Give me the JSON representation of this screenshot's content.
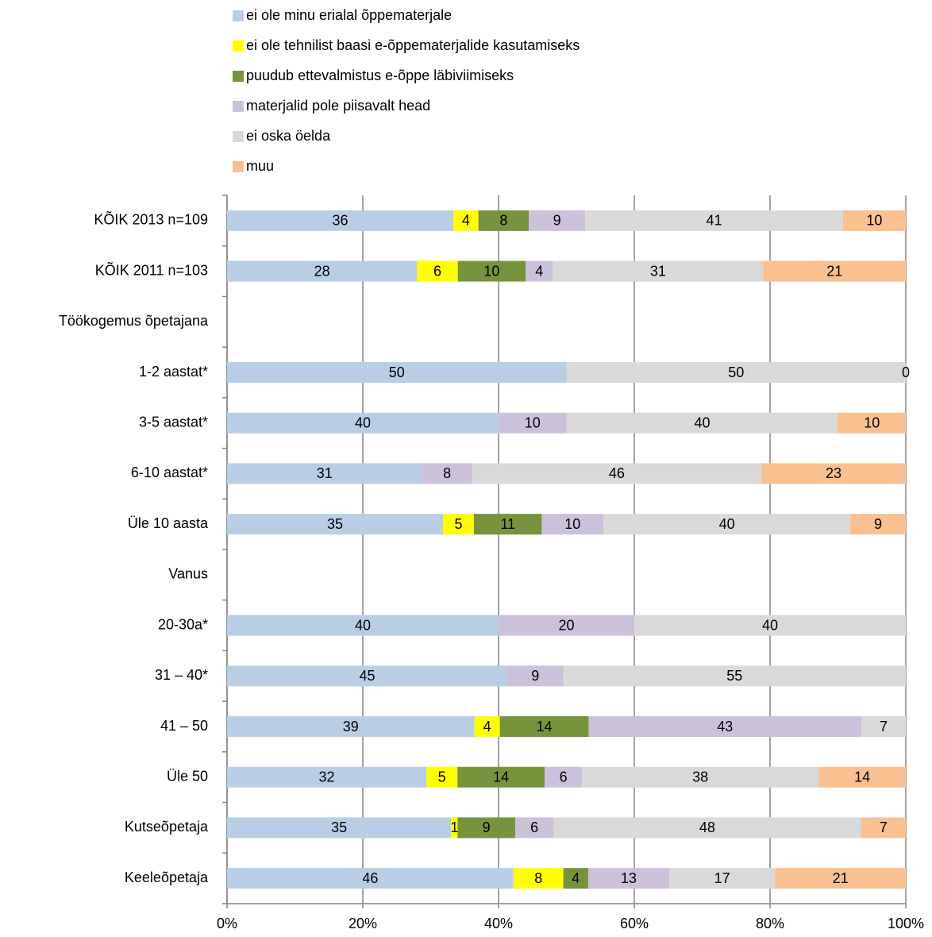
{
  "chart_data": {
    "type": "bar",
    "orientation": "horizontal",
    "stacked": "percent",
    "categories": [
      "KÕIK 2013 n=109",
      "KÕIK 2011 n=103",
      "Töökogemus õpetajana",
      "1-2 aastat*",
      "3-5 aastat*",
      "6-10 aastat*",
      "Üle 10 aasta",
      "Vanus",
      "20-30a*",
      "31 – 40*",
      "41 – 50",
      "Üle 50",
      "Kutseõpetaja",
      "Keeleõpetaja"
    ],
    "series": [
      {
        "name": "ei ole minu erialal õppematerjale",
        "color": "#b9cde5",
        "values": [
          36,
          28,
          null,
          50,
          40,
          31,
          35,
          null,
          40,
          45,
          39,
          32,
          35,
          46
        ]
      },
      {
        "name": "ei ole tehnilist baasi e-õppematerjalide kasutamiseks",
        "color": "#ffff00",
        "values": [
          4,
          6,
          null,
          null,
          null,
          null,
          5,
          null,
          null,
          null,
          4,
          5,
          1,
          8
        ]
      },
      {
        "name": "puudub ettevalmistus e-õppe läbiviimiseks",
        "color": "#77933c",
        "values": [
          8,
          10,
          null,
          null,
          null,
          null,
          11,
          null,
          null,
          null,
          14,
          14,
          9,
          4
        ]
      },
      {
        "name": "materjalid pole piisavalt head",
        "color": "#ccc1da",
        "values": [
          9,
          4,
          null,
          null,
          10,
          8,
          10,
          null,
          20,
          9,
          43,
          6,
          6,
          13
        ]
      },
      {
        "name": "ei oska öelda",
        "color": "#d9d9d9",
        "values": [
          41,
          31,
          null,
          50,
          40,
          46,
          40,
          null,
          40,
          55,
          7,
          38,
          48,
          17
        ]
      },
      {
        "name": "muu",
        "color": "#fac090",
        "values": [
          10,
          21,
          null,
          0,
          10,
          23,
          9,
          null,
          null,
          null,
          null,
          14,
          7,
          21
        ]
      }
    ],
    "xlim": [
      0,
      100
    ],
    "xticks": [
      {
        "value": 0,
        "label": "0%"
      },
      {
        "value": 20,
        "label": "20%"
      },
      {
        "value": 40,
        "label": "40%"
      },
      {
        "value": 60,
        "label": "60%"
      },
      {
        "value": 80,
        "label": "80%"
      },
      {
        "value": 100,
        "label": "100%"
      }
    ],
    "grid": true,
    "legend": "top"
  }
}
